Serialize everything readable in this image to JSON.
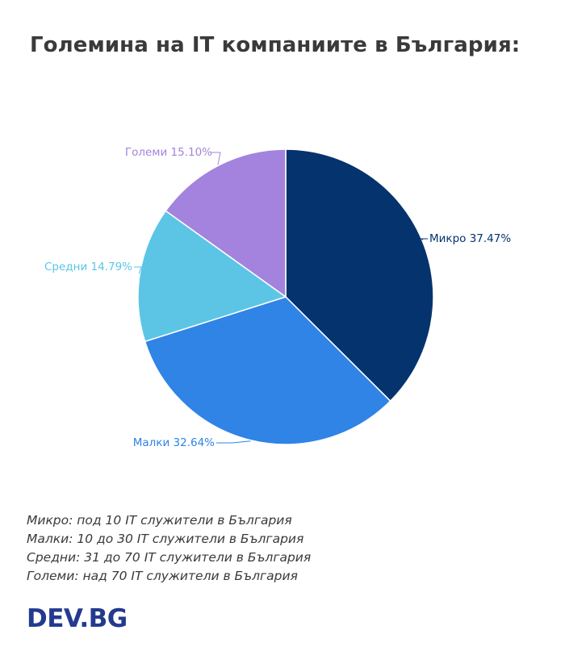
{
  "chart_data": {
    "type": "pie",
    "title": "Големина на IT компаниите в България:",
    "slices": [
      {
        "name": "Микро",
        "value": 37.47,
        "label": "Микро 37.47%",
        "color": "#05336e"
      },
      {
        "name": "Малки",
        "value": 32.64,
        "label": "Малки 32.64%",
        "color": "#2f84e6"
      },
      {
        "name": "Средни",
        "value": 14.79,
        "label": "Средни 14.79%",
        "color": "#5cc5e6"
      },
      {
        "name": "Големи",
        "value": 15.1,
        "label": "Големи 15.10%",
        "color": "#a383dd"
      }
    ]
  },
  "notes": [
    "Микро: под 10 IT служители в България",
    "Малки: 10 до 30 IT служители в България",
    "Средни: 31 до 70 IT служители в България",
    "Големи: над 70 IT служители в България"
  ],
  "logo": {
    "text": "DEV.BG"
  }
}
